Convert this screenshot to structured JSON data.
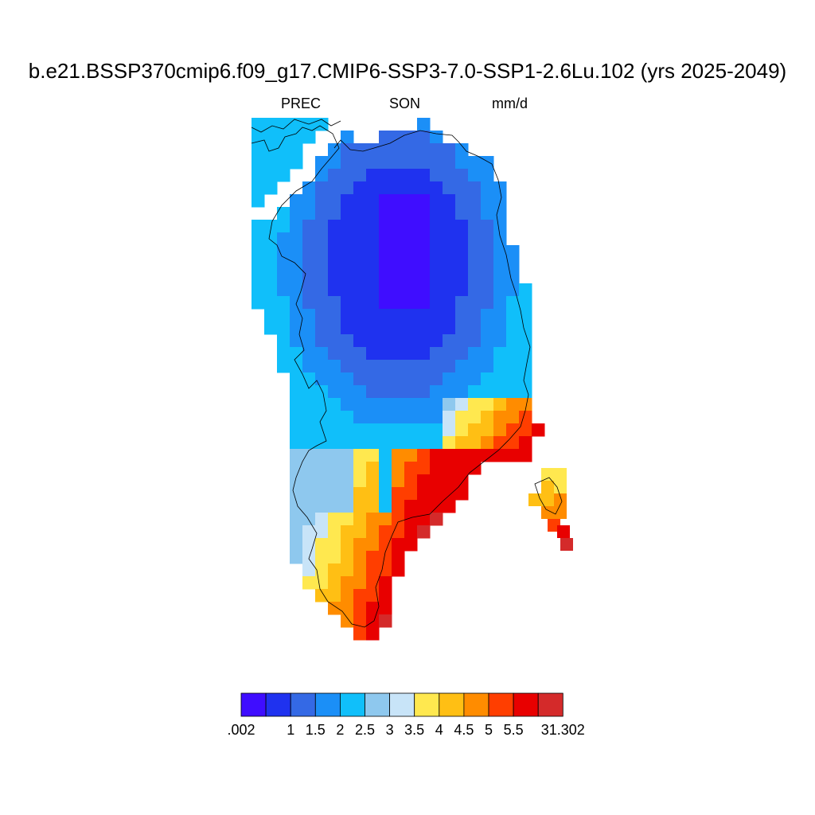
{
  "title": "b.e21.BSSP370cmip6.f09_g17.CMIP6-SSP3-7.0-SSP1-2.6Lu.102 (yrs 2025-2049)",
  "subtitle_left": "PREC",
  "subtitle_center": "SON",
  "subtitle_right": "mm/d",
  "colorbar": {
    "colors": [
      "#3f0dff",
      "#1f32ef",
      "#3469e5",
      "#1b8ff7",
      "#10bffa",
      "#8ec8ee",
      "#c8e4f8",
      "#ffe84f",
      "#ffbf14",
      "#ff8c00",
      "#ff3e00",
      "#e80000",
      "#d42a2a"
    ],
    "labels": [
      ".002",
      "",
      "1",
      "1.5",
      "2",
      "2.5",
      "3",
      "3.5",
      "4",
      "4.5",
      "5",
      "5.5",
      "31.302"
    ]
  },
  "map": {
    "projection": "polar-stereographic",
    "region": "Greenland",
    "variable": "PREC",
    "units": "mm/d",
    "season": "SON"
  }
}
